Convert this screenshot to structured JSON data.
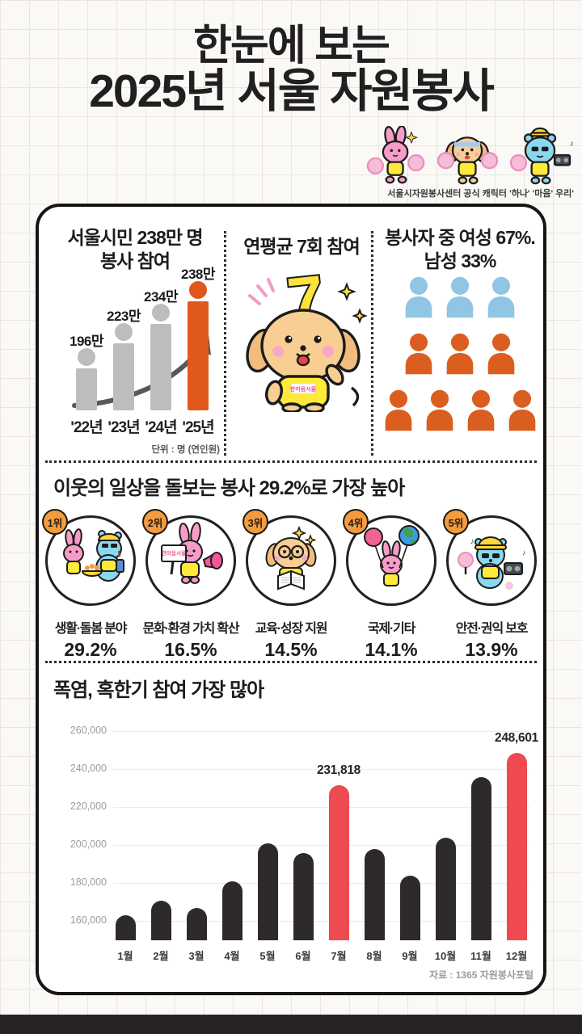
{
  "header": {
    "title_line1": "한눈에 보는",
    "title_line2": "2025년 서울 자원봉사",
    "mascot_caption": "서울시자원봉사센터 공식 캐릭터 '하나' '마음' 우리'"
  },
  "mascots": {
    "vest_logo": "한마음서울"
  },
  "colors": {
    "bar_gray": "#BDBDBD",
    "accent_orange": "#E0581C",
    "male_blue": "#90C5E3",
    "female_orange": "#DA5E1F",
    "bar_dark": "#2E2A2B",
    "bar_red": "#EE4A4F",
    "badge_orange": "#F59B3C"
  },
  "stats": {
    "participation": {
      "title_line1": "서울시민 238만 명",
      "title_line2": "봉사 참여",
      "unit_note": "단위 : 명 (연인원)"
    },
    "frequency": {
      "title": "연평균 7회 참여",
      "big_number": "7"
    },
    "gender": {
      "title_line1": "봉사자 중 여성 67%.",
      "title_line2": "남성 33%"
    }
  },
  "category_section": {
    "title": "이웃의 일상을 돌보는 봉사 29.2%로 가장 높아",
    "items": [
      {
        "rank": 1,
        "rank_label": "1위",
        "label": "생활·돌봄 분야",
        "value_pct": 29.2,
        "value_label": "29.2%"
      },
      {
        "rank": 2,
        "rank_label": "2위",
        "label": "문화·환경 가치 확산",
        "value_pct": 16.5,
        "value_label": "16.5%"
      },
      {
        "rank": 3,
        "rank_label": "3위",
        "label": "교육·성장 지원",
        "value_pct": 14.5,
        "value_label": "14.5%"
      },
      {
        "rank": 4,
        "rank_label": "4위",
        "label": "국제·기타",
        "value_pct": 14.1,
        "value_label": "14.1%"
      },
      {
        "rank": 5,
        "rank_label": "5위",
        "label": "안전·권익 보호",
        "value_pct": 13.9,
        "value_label": "13.9%"
      }
    ]
  },
  "monthly_section": {
    "title": "폭염, 혹한기 참여 가장 많아",
    "source": "자료 : 1365 자원봉사포털"
  },
  "chart_data": [
    {
      "type": "bar",
      "title": "서울시민 238만 명 봉사 참여",
      "categories": [
        "'22년",
        "'23년",
        "'24년",
        "'25년"
      ],
      "values": [
        196,
        223,
        234,
        238
      ],
      "value_labels": [
        "196만",
        "223만",
        "234만",
        "238만"
      ],
      "unit": "만 명 (연인원)",
      "highlight_index": 3,
      "colors": {
        "default": "#BDBDBD",
        "highlight": "#E0581C"
      }
    },
    {
      "type": "pictograph",
      "title": "봉사자 중 여성 67%. 남성 33%",
      "female_pct": 67,
      "male_pct": 33,
      "rows": [
        {
          "group": "male",
          "count": 3
        },
        {
          "group": "female",
          "count": 3
        },
        {
          "group": "female",
          "count": 4
        }
      ],
      "colors": {
        "male": "#90C5E3",
        "female": "#DA5E1F"
      }
    },
    {
      "type": "bar",
      "title": "폭염, 혹한기 참여 가장 많아",
      "categories": [
        "1월",
        "2월",
        "3월",
        "4월",
        "5월",
        "6월",
        "7월",
        "8월",
        "9월",
        "10월",
        "11월",
        "12월"
      ],
      "values": [
        163000,
        171000,
        167000,
        181000,
        201000,
        196000,
        231818,
        198000,
        184000,
        204000,
        236000,
        248601
      ],
      "data_labels": [
        null,
        null,
        null,
        null,
        null,
        null,
        "231,818",
        null,
        null,
        null,
        null,
        "248,601"
      ],
      "highlight_indices": [
        6,
        11
      ],
      "y_ticks": [
        260000,
        240000,
        220000,
        200000,
        180000,
        160000
      ],
      "y_tick_labels": [
        "260,000",
        "240,000",
        "220,000",
        "200,000",
        "180,000",
        "160,000"
      ],
      "ylim": [
        150000,
        265000
      ],
      "grid": true,
      "colors": {
        "default": "#2E2A2B",
        "highlight": "#EE4A4F"
      }
    },
    {
      "type": "table",
      "title": "이웃의 일상을 돌보는 봉사 29.2%로 가장 높아",
      "categories": [
        "생활·돌봄 분야",
        "문화·환경 가치 확산",
        "교육·성장 지원",
        "국제·기타",
        "안전·권익 보호"
      ],
      "values": [
        29.2,
        16.5,
        14.5,
        14.1,
        13.9
      ],
      "ylabel": "%"
    }
  ]
}
